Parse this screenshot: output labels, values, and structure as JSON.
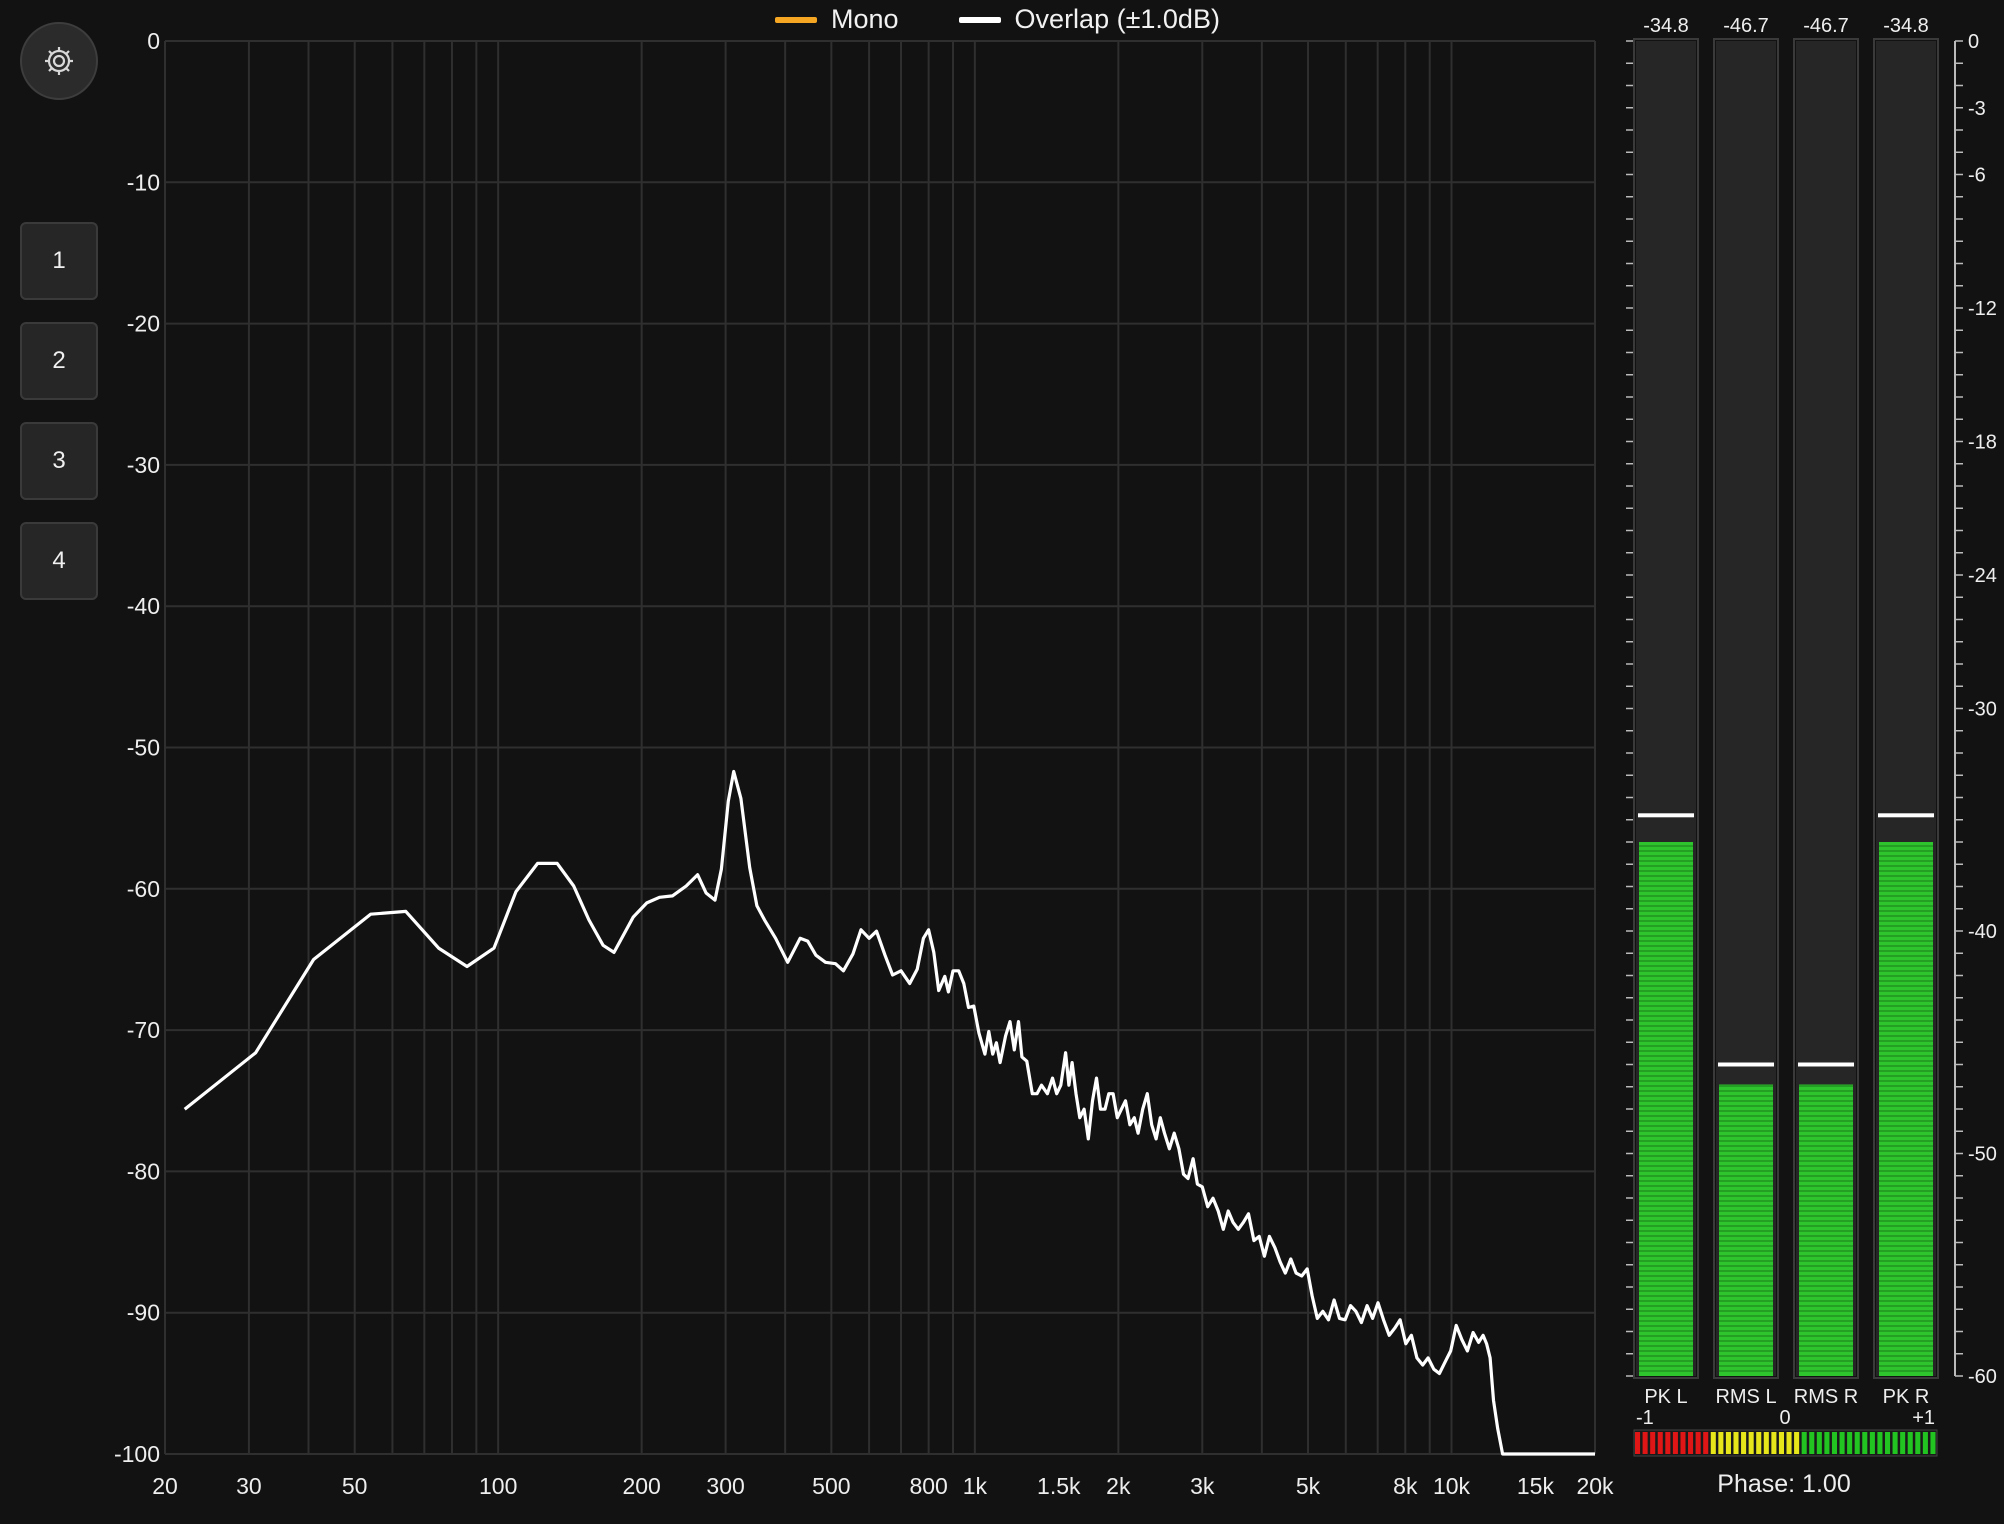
{
  "sidebar": {
    "settings_icon": "gear-icon",
    "presets": [
      "1",
      "2",
      "3",
      "4"
    ]
  },
  "legend": [
    {
      "label": "Mono",
      "color": "#f5a623"
    },
    {
      "label": "Overlap (±1.0dB)",
      "color": "#ffffff"
    }
  ],
  "chart_data": {
    "type": "line",
    "title": "",
    "xlabel": "",
    "ylabel": "",
    "x_scale": "log",
    "xlim": [
      20,
      20000
    ],
    "ylim": [
      -100,
      0
    ],
    "y_ticks": [
      0,
      -10,
      -20,
      -30,
      -40,
      -50,
      -60,
      -70,
      -80,
      -90,
      -100
    ],
    "x_ticks": [
      {
        "v": 20,
        "label": "20"
      },
      {
        "v": 30,
        "label": "30"
      },
      {
        "v": 50,
        "label": "50"
      },
      {
        "v": 100,
        "label": "100"
      },
      {
        "v": 200,
        "label": "200"
      },
      {
        "v": 300,
        "label": "300"
      },
      {
        "v": 500,
        "label": "500"
      },
      {
        "v": 800,
        "label": "800"
      },
      {
        "v": 1000,
        "label": "1k"
      },
      {
        "v": 1500,
        "label": "1.5k"
      },
      {
        "v": 2000,
        "label": "2k"
      },
      {
        "v": 3000,
        "label": "3k"
      },
      {
        "v": 5000,
        "label": "5k"
      },
      {
        "v": 8000,
        "label": "8k"
      },
      {
        "v": 10000,
        "label": "10k"
      },
      {
        "v": 15000,
        "label": "15k"
      },
      {
        "v": 20000,
        "label": "20k"
      }
    ],
    "grid_x": [
      20,
      30,
      40,
      50,
      60,
      70,
      80,
      90,
      100,
      200,
      300,
      400,
      500,
      600,
      700,
      800,
      900,
      1000,
      2000,
      3000,
      4000,
      5000,
      6000,
      7000,
      8000,
      9000,
      10000,
      20000
    ],
    "series": [
      {
        "name": "Overlap (±1.0dB)",
        "color": "#ffffff",
        "points": [
          [
            22,
            -75.6
          ],
          [
            31,
            -71.6
          ],
          [
            41,
            -65.0
          ],
          [
            54,
            -61.8
          ],
          [
            64,
            -61.6
          ],
          [
            75,
            -64.2
          ],
          [
            86,
            -65.5
          ],
          [
            98,
            -64.2
          ],
          [
            109,
            -60.2
          ],
          [
            121,
            -58.2
          ],
          [
            133,
            -58.2
          ],
          [
            144,
            -59.8
          ],
          [
            155,
            -62.2
          ],
          [
            166,
            -64.0
          ],
          [
            175,
            -64.5
          ],
          [
            192,
            -62.0
          ],
          [
            205,
            -61.0
          ],
          [
            218,
            -60.6
          ],
          [
            232,
            -60.5
          ],
          [
            248,
            -59.8
          ],
          [
            262,
            -59.0
          ],
          [
            273,
            -60.3
          ],
          [
            285,
            -60.8
          ],
          [
            294,
            -58.6
          ],
          [
            304,
            -53.8
          ],
          [
            312,
            -51.7
          ],
          [
            323,
            -53.6
          ],
          [
            337,
            -58.5
          ],
          [
            349,
            -61.2
          ],
          [
            362,
            -62.2
          ],
          [
            382,
            -63.5
          ],
          [
            405,
            -65.2
          ],
          [
            430,
            -63.5
          ],
          [
            446,
            -63.7
          ],
          [
            464,
            -64.7
          ],
          [
            486,
            -65.2
          ],
          [
            510,
            -65.3
          ],
          [
            530,
            -65.8
          ],
          [
            555,
            -64.6
          ],
          [
            577,
            -62.9
          ],
          [
            600,
            -63.5
          ],
          [
            622,
            -63.0
          ],
          [
            648,
            -64.7
          ],
          [
            672,
            -66.1
          ],
          [
            700,
            -65.8
          ],
          [
            730,
            -66.7
          ],
          [
            757,
            -65.7
          ],
          [
            780,
            -63.5
          ],
          [
            800,
            -62.9
          ],
          [
            820,
            -64.5
          ],
          [
            840,
            -67.2
          ],
          [
            865,
            -66.2
          ],
          [
            880,
            -67.3
          ],
          [
            900,
            -65.8
          ],
          [
            925,
            -65.8
          ],
          [
            948,
            -66.7
          ],
          [
            970,
            -68.4
          ],
          [
            995,
            -68.3
          ],
          [
            1020,
            -70.2
          ],
          [
            1050,
            -71.7
          ],
          [
            1070,
            -70.1
          ],
          [
            1090,
            -71.7
          ],
          [
            1110,
            -70.9
          ],
          [
            1130,
            -72.3
          ],
          [
            1160,
            -70.4
          ],
          [
            1185,
            -69.4
          ],
          [
            1210,
            -71.4
          ],
          [
            1235,
            -69.4
          ],
          [
            1255,
            -71.9
          ],
          [
            1285,
            -72.2
          ],
          [
            1320,
            -74.5
          ],
          [
            1350,
            -74.5
          ],
          [
            1380,
            -73.9
          ],
          [
            1420,
            -74.5
          ],
          [
            1455,
            -73.4
          ],
          [
            1485,
            -74.5
          ],
          [
            1515,
            -73.9
          ],
          [
            1550,
            -71.6
          ],
          [
            1575,
            -73.9
          ],
          [
            1600,
            -72.3
          ],
          [
            1630,
            -74.5
          ],
          [
            1660,
            -76.2
          ],
          [
            1695,
            -75.6
          ],
          [
            1730,
            -77.7
          ],
          [
            1765,
            -75.0
          ],
          [
            1800,
            -73.4
          ],
          [
            1835,
            -75.6
          ],
          [
            1875,
            -75.6
          ],
          [
            1910,
            -74.5
          ],
          [
            1950,
            -74.5
          ],
          [
            1990,
            -76.2
          ],
          [
            2030,
            -75.6
          ],
          [
            2070,
            -75.0
          ],
          [
            2115,
            -76.7
          ],
          [
            2160,
            -76.2
          ],
          [
            2200,
            -77.3
          ],
          [
            2250,
            -75.6
          ],
          [
            2300,
            -74.5
          ],
          [
            2350,
            -76.7
          ],
          [
            2400,
            -77.7
          ],
          [
            2450,
            -76.2
          ],
          [
            2500,
            -77.3
          ],
          [
            2560,
            -78.4
          ],
          [
            2620,
            -77.3
          ],
          [
            2680,
            -78.4
          ],
          [
            2740,
            -80.2
          ],
          [
            2800,
            -80.5
          ],
          [
            2870,
            -79.1
          ],
          [
            2930,
            -80.9
          ],
          [
            3000,
            -81.1
          ],
          [
            3080,
            -82.5
          ],
          [
            3160,
            -81.9
          ],
          [
            3240,
            -82.8
          ],
          [
            3320,
            -84.1
          ],
          [
            3400,
            -82.8
          ],
          [
            3480,
            -83.6
          ],
          [
            3570,
            -84.1
          ],
          [
            3660,
            -83.6
          ],
          [
            3750,
            -83.0
          ],
          [
            3850,
            -84.9
          ],
          [
            3950,
            -84.6
          ],
          [
            4050,
            -86.0
          ],
          [
            4150,
            -84.6
          ],
          [
            4260,
            -85.4
          ],
          [
            4370,
            -86.4
          ],
          [
            4480,
            -87.2
          ],
          [
            4600,
            -86.2
          ],
          [
            4720,
            -87.2
          ],
          [
            4850,
            -87.4
          ],
          [
            4980,
            -86.9
          ],
          [
            5100,
            -88.8
          ],
          [
            5230,
            -90.4
          ],
          [
            5370,
            -89.9
          ],
          [
            5520,
            -90.5
          ],
          [
            5670,
            -89.1
          ],
          [
            5820,
            -90.4
          ],
          [
            5980,
            -90.5
          ],
          [
            6140,
            -89.5
          ],
          [
            6300,
            -89.9
          ],
          [
            6470,
            -90.7
          ],
          [
            6650,
            -89.5
          ],
          [
            6830,
            -90.4
          ],
          [
            7010,
            -89.3
          ],
          [
            7200,
            -90.5
          ],
          [
            7400,
            -91.6
          ],
          [
            7600,
            -91.1
          ],
          [
            7800,
            -90.5
          ],
          [
            8020,
            -92.2
          ],
          [
            8240,
            -91.6
          ],
          [
            8460,
            -93.2
          ],
          [
            8700,
            -93.7
          ],
          [
            8930,
            -93.2
          ],
          [
            9180,
            -94.0
          ],
          [
            9430,
            -94.3
          ],
          [
            9690,
            -93.5
          ],
          [
            9960,
            -92.7
          ],
          [
            10230,
            -90.9
          ],
          [
            10510,
            -91.9
          ],
          [
            10800,
            -92.7
          ],
          [
            11100,
            -91.4
          ],
          [
            11400,
            -92.1
          ],
          [
            11650,
            -91.6
          ],
          [
            11850,
            -92.2
          ],
          [
            12050,
            -93.2
          ],
          [
            12250,
            -96.2
          ],
          [
            12500,
            -98.2
          ],
          [
            12800,
            -100
          ],
          [
            14000,
            -100
          ],
          [
            17000,
            -100
          ],
          [
            20000,
            -100
          ]
        ]
      }
    ]
  },
  "meters": {
    "scale": {
      "min": -60,
      "max": 0,
      "labels": [
        0,
        -3,
        -6,
        -12,
        -18,
        -24,
        -30,
        -40,
        -50,
        -60
      ]
    },
    "channels": [
      {
        "label": "PK L",
        "readout": "-34.8",
        "level": -36.0,
        "hold": -34.8
      },
      {
        "label": "RMS L",
        "readout": "-46.7",
        "level": -46.9,
        "hold": -46.0
      },
      {
        "label": "RMS R",
        "readout": "-46.7",
        "level": -46.9,
        "hold": -46.0
      },
      {
        "label": "PK R",
        "readout": "-34.8",
        "level": -36.0,
        "hold": -34.8
      }
    ],
    "meter_color": "#2ec42e",
    "hold_color": "#ffffff"
  },
  "correlation": {
    "left_label": "-1",
    "center_label": "0",
    "right_label": "+1",
    "value": 1.0,
    "phase_text": "Phase: 1.00",
    "colors": {
      "neg": "#e01515",
      "mid": "#e6e61a",
      "pos": "#22c422"
    }
  }
}
